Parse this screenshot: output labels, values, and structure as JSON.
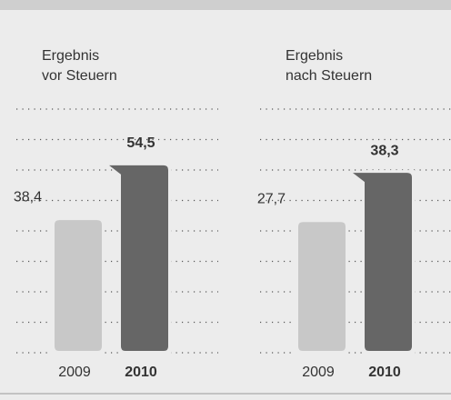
{
  "chart_data": [
    {
      "type": "bar",
      "title_lines": [
        "Ergebnis",
        "vor Steuern"
      ],
      "categories": [
        "2009",
        "2010"
      ],
      "values": [
        38.4,
        54.5
      ],
      "value_labels": [
        "38,4",
        "54,5"
      ],
      "colors": [
        "#c8c8c8",
        "#666666"
      ],
      "ylim": [
        0,
        71
      ]
    },
    {
      "type": "bar",
      "title_lines": [
        "Ergebnis",
        "nach Steuern"
      ],
      "categories": [
        "2009",
        "2010"
      ],
      "values": [
        27.7,
        38.3
      ],
      "value_labels": [
        "27,7",
        "38,3"
      ],
      "colors": [
        "#c8c8c8",
        "#666666"
      ],
      "ylim": [
        0,
        52
      ]
    }
  ]
}
